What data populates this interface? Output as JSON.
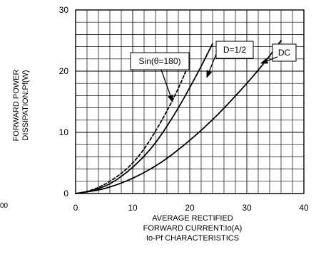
{
  "chart_data": {
    "type": "line",
    "title": "Io-Pf CHARACTERISTICS",
    "xlabel_lines": [
      "AVERAGE RECTIFIED",
      "FORWARD CURRENT:Io(A)"
    ],
    "ylabel_lines": [
      "FORWARD POWER",
      "DISSIPATION:Pf(W)"
    ],
    "xlim": [
      0,
      40
    ],
    "ylim": [
      0,
      30
    ],
    "x_ticks": [
      0,
      10,
      20,
      30,
      40
    ],
    "y_ticks": [
      0,
      10,
      20,
      30
    ],
    "x_tick_labels": [
      "0",
      "10",
      "20",
      "30",
      "40"
    ],
    "y_tick_labels": [
      "0",
      "10",
      "20",
      "30"
    ],
    "grid": true,
    "series": [
      {
        "name": "Sin(θ=180)",
        "style": "dashed",
        "points": [
          [
            0,
            0
          ],
          [
            2,
            0.35
          ],
          [
            4,
            1.0
          ],
          [
            6,
            2.0
          ],
          [
            8,
            3.3
          ],
          [
            10,
            5.0
          ],
          [
            12,
            7.3
          ],
          [
            14,
            10.2
          ],
          [
            16,
            13.5
          ],
          [
            18,
            17.2
          ],
          [
            20,
            21.5
          ]
        ]
      },
      {
        "name": "D=1/2",
        "style": "solid",
        "points": [
          [
            0,
            0
          ],
          [
            2,
            0.3
          ],
          [
            4,
            0.8
          ],
          [
            6,
            1.6
          ],
          [
            8,
            2.8
          ],
          [
            10,
            4.3
          ],
          [
            12,
            6.1
          ],
          [
            14,
            8.3
          ],
          [
            16,
            11.0
          ],
          [
            18,
            14.0
          ],
          [
            20,
            17.3
          ],
          [
            22,
            20.8
          ],
          [
            24,
            24.5
          ]
        ]
      },
      {
        "name": "DC",
        "style": "solid",
        "points": [
          [
            0,
            0
          ],
          [
            5,
            0.8
          ],
          [
            10,
            2.5
          ],
          [
            15,
            5.1
          ],
          [
            20,
            8.7
          ],
          [
            25,
            13.0
          ],
          [
            30,
            18.0
          ],
          [
            33,
            21.3
          ],
          [
            36,
            25.0
          ]
        ]
      }
    ],
    "annotations": [
      {
        "text": "Sin(θ=180)",
        "arrow_to": [
          17,
          15.0
        ]
      },
      {
        "text": "D=1/2",
        "arrow_to": [
          23,
          19.0
        ]
      },
      {
        "text": "DC",
        "arrow_to": [
          32.5,
          21.3
        ]
      }
    ]
  },
  "stray_text": "00"
}
